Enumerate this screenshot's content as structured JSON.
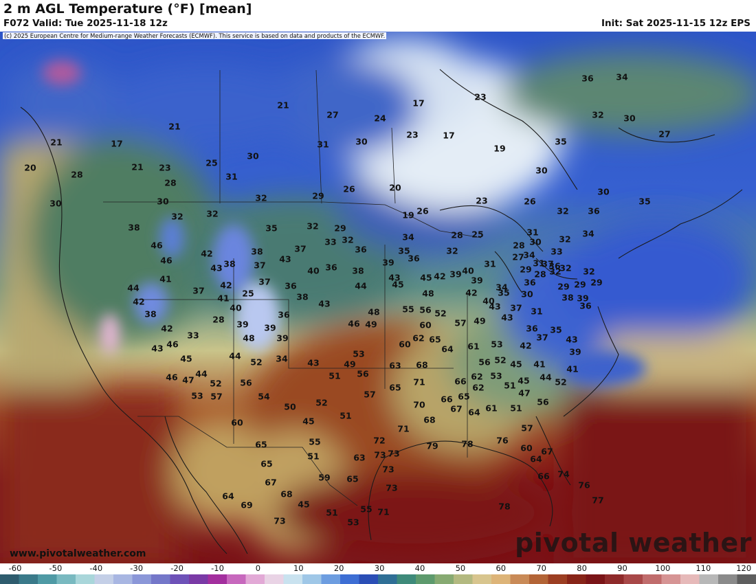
{
  "header": {
    "title": "2 m AGL Temperature (°F) [mean]",
    "valid": "F072 Valid: Tue 2025-11-18 12z",
    "init": "Init: Sat 2025-11-15 12z EPS"
  },
  "map": {
    "copyright": "(c) 2025 European Centre for Medium-range Weather Forecasts (ECMWF). This service is based on data and products of the ECMWF.",
    "website": "www.pivotalweather.com",
    "brand": "pivotal weather",
    "labels": [
      {
        "v": "21",
        "lon": -138.8,
        "lat": 61.3
      },
      {
        "v": "20",
        "lon": -142.6,
        "lat": 57.6
      },
      {
        "v": "17",
        "lon": -130.0,
        "lat": 61.1
      },
      {
        "v": "21",
        "lon": -121.6,
        "lat": 63.6
      },
      {
        "v": "21",
        "lon": -105.8,
        "lat": 66.7
      },
      {
        "v": "27",
        "lon": -98.6,
        "lat": 65.3
      },
      {
        "v": "24",
        "lon": -91.7,
        "lat": 64.8
      },
      {
        "v": "17",
        "lon": -86.1,
        "lat": 67.0
      },
      {
        "v": "23",
        "lon": -77.1,
        "lat": 67.9
      },
      {
        "v": "36",
        "lon": -61.5,
        "lat": 70.6
      },
      {
        "v": "34",
        "lon": -56.5,
        "lat": 70.8
      },
      {
        "v": "32",
        "lon": -60.0,
        "lat": 65.3
      },
      {
        "v": "30",
        "lon": -55.4,
        "lat": 64.8
      },
      {
        "v": "27",
        "lon": -50.3,
        "lat": 62.5
      },
      {
        "v": "28",
        "lon": -135.8,
        "lat": 56.6
      },
      {
        "v": "21",
        "lon": -127.0,
        "lat": 57.7
      },
      {
        "v": "23",
        "lon": -123.0,
        "lat": 57.6
      },
      {
        "v": "25",
        "lon": -116.2,
        "lat": 58.3
      },
      {
        "v": "30",
        "lon": -110.2,
        "lat": 59.3
      },
      {
        "v": "31",
        "lon": -100.0,
        "lat": 61.0
      },
      {
        "v": "30",
        "lon": -94.4,
        "lat": 61.4
      },
      {
        "v": "23",
        "lon": -87.0,
        "lat": 62.4
      },
      {
        "v": "17",
        "lon": -81.7,
        "lat": 62.3
      },
      {
        "v": "19",
        "lon": -74.3,
        "lat": 60.4
      },
      {
        "v": "35",
        "lon": -65.4,
        "lat": 61.4
      },
      {
        "v": "30",
        "lon": -138.9,
        "lat": 52.4
      },
      {
        "v": "28",
        "lon": -122.2,
        "lat": 55.4
      },
      {
        "v": "31",
        "lon": -113.3,
        "lat": 56.3
      },
      {
        "v": "30",
        "lon": -123.3,
        "lat": 52.7
      },
      {
        "v": "32",
        "lon": -109.0,
        "lat": 53.2
      },
      {
        "v": "30",
        "lon": -68.2,
        "lat": 57.2
      },
      {
        "v": "38",
        "lon": -127.5,
        "lat": 48.9
      },
      {
        "v": "32",
        "lon": -121.2,
        "lat": 50.5
      },
      {
        "v": "32",
        "lon": -116.1,
        "lat": 50.9
      },
      {
        "v": "29",
        "lon": -100.7,
        "lat": 53.5
      },
      {
        "v": "26",
        "lon": -96.2,
        "lat": 54.5
      },
      {
        "v": "20",
        "lon": -89.5,
        "lat": 54.7
      },
      {
        "v": "30",
        "lon": -59.2,
        "lat": 54.1
      },
      {
        "v": "35",
        "lon": -53.2,
        "lat": 52.7
      },
      {
        "v": "46",
        "lon": -124.2,
        "lat": 46.3
      },
      {
        "v": "46",
        "lon": -122.8,
        "lat": 44.1
      },
      {
        "v": "42",
        "lon": -116.9,
        "lat": 45.1
      },
      {
        "v": "35",
        "lon": -107.5,
        "lat": 48.8
      },
      {
        "v": "32",
        "lon": -101.5,
        "lat": 49.1
      },
      {
        "v": "29",
        "lon": -97.5,
        "lat": 48.8
      },
      {
        "v": "19",
        "lon": -87.6,
        "lat": 50.7
      },
      {
        "v": "26",
        "lon": -85.5,
        "lat": 51.3
      },
      {
        "v": "23",
        "lon": -76.9,
        "lat": 52.8
      },
      {
        "v": "26",
        "lon": -69.9,
        "lat": 52.7
      },
      {
        "v": "32",
        "lon": -65.1,
        "lat": 51.3
      },
      {
        "v": "36",
        "lon": -60.6,
        "lat": 51.3
      },
      {
        "v": "41",
        "lon": -122.9,
        "lat": 41.4
      },
      {
        "v": "43",
        "lon": -115.5,
        "lat": 43.0
      },
      {
        "v": "38",
        "lon": -113.6,
        "lat": 43.6
      },
      {
        "v": "38",
        "lon": -109.6,
        "lat": 45.4
      },
      {
        "v": "37",
        "lon": -103.3,
        "lat": 45.8
      },
      {
        "v": "33",
        "lon": -98.9,
        "lat": 46.8
      },
      {
        "v": "32",
        "lon": -96.4,
        "lat": 47.1
      },
      {
        "v": "34",
        "lon": -87.6,
        "lat": 47.5
      },
      {
        "v": "28",
        "lon": -80.5,
        "lat": 47.8
      },
      {
        "v": "25",
        "lon": -77.5,
        "lat": 47.9
      },
      {
        "v": "31",
        "lon": -69.5,
        "lat": 48.2
      },
      {
        "v": "44",
        "lon": -127.6,
        "lat": 40.1
      },
      {
        "v": "37",
        "lon": -109.2,
        "lat": 43.4
      },
      {
        "v": "43",
        "lon": -105.5,
        "lat": 44.3
      },
      {
        "v": "36",
        "lon": -94.5,
        "lat": 45.7
      },
      {
        "v": "35",
        "lon": -88.2,
        "lat": 45.5
      },
      {
        "v": "28",
        "lon": -71.5,
        "lat": 46.3
      },
      {
        "v": "30",
        "lon": -69.1,
        "lat": 46.8
      },
      {
        "v": "32",
        "lon": -64.8,
        "lat": 47.2
      },
      {
        "v": "34",
        "lon": -61.4,
        "lat": 48.0
      },
      {
        "v": "42",
        "lon": -126.8,
        "lat": 38.1
      },
      {
        "v": "37",
        "lon": -118.1,
        "lat": 39.7
      },
      {
        "v": "42",
        "lon": -114.1,
        "lat": 40.5
      },
      {
        "v": "37",
        "lon": -108.5,
        "lat": 41.0
      },
      {
        "v": "40",
        "lon": -101.4,
        "lat": 42.6
      },
      {
        "v": "36",
        "lon": -98.8,
        "lat": 43.1
      },
      {
        "v": "38",
        "lon": -94.9,
        "lat": 42.6
      },
      {
        "v": "39",
        "lon": -90.5,
        "lat": 43.8
      },
      {
        "v": "36",
        "lon": -86.8,
        "lat": 44.4
      },
      {
        "v": "32",
        "lon": -81.2,
        "lat": 45.5
      },
      {
        "v": "34",
        "lon": -70.0,
        "lat": 44.9
      },
      {
        "v": "33",
        "lon": -66.0,
        "lat": 45.4
      },
      {
        "v": "38",
        "lon": -125.1,
        "lat": 36.3
      },
      {
        "v": "25",
        "lon": -110.9,
        "lat": 39.3
      },
      {
        "v": "36",
        "lon": -104.7,
        "lat": 40.4
      },
      {
        "v": "41",
        "lon": -114.5,
        "lat": 38.6
      },
      {
        "v": "40",
        "lon": -78.9,
        "lat": 42.6
      },
      {
        "v": "31",
        "lon": -75.7,
        "lat": 43.6
      },
      {
        "v": "27",
        "lon": -71.6,
        "lat": 44.6
      },
      {
        "v": "29",
        "lon": -70.5,
        "lat": 42.8
      },
      {
        "v": "31",
        "lon": -68.6,
        "lat": 43.7
      },
      {
        "v": "37",
        "lon": -67.3,
        "lat": 43.6
      },
      {
        "v": "36",
        "lon": -66.3,
        "lat": 43.3
      },
      {
        "v": "32",
        "lon": -66.2,
        "lat": 42.5
      },
      {
        "v": "32",
        "lon": -64.7,
        "lat": 43.0
      },
      {
        "v": "42",
        "lon": -122.7,
        "lat": 34.2
      },
      {
        "v": "40",
        "lon": -112.7,
        "lat": 37.2
      },
      {
        "v": "38",
        "lon": -103.0,
        "lat": 38.8
      },
      {
        "v": "44",
        "lon": -94.5,
        "lat": 40.4
      },
      {
        "v": "43",
        "lon": -89.6,
        "lat": 41.6
      },
      {
        "v": "45",
        "lon": -89.1,
        "lat": 40.6
      },
      {
        "v": "45",
        "lon": -85.0,
        "lat": 41.6
      },
      {
        "v": "42",
        "lon": -83.0,
        "lat": 41.8
      },
      {
        "v": "39",
        "lon": -80.7,
        "lat": 42.1
      },
      {
        "v": "39",
        "lon": -77.6,
        "lat": 41.2
      },
      {
        "v": "34",
        "lon": -74.0,
        "lat": 40.2
      },
      {
        "v": "36",
        "lon": -69.9,
        "lat": 40.9
      },
      {
        "v": "28",
        "lon": -68.4,
        "lat": 42.1
      },
      {
        "v": "29",
        "lon": -65.0,
        "lat": 40.3
      },
      {
        "v": "29",
        "lon": -60.2,
        "lat": 40.9
      },
      {
        "v": "32",
        "lon": -61.3,
        "lat": 42.5
      },
      {
        "v": "33",
        "lon": -118.9,
        "lat": 33.2
      },
      {
        "v": "28",
        "lon": -115.2,
        "lat": 35.5
      },
      {
        "v": "39",
        "lon": -111.7,
        "lat": 34.8
      },
      {
        "v": "36",
        "lon": -105.7,
        "lat": 36.2
      },
      {
        "v": "43",
        "lon": -99.8,
        "lat": 37.8
      },
      {
        "v": "48",
        "lon": -84.7,
        "lat": 39.3
      },
      {
        "v": "42",
        "lon": -78.4,
        "lat": 39.4
      },
      {
        "v": "35",
        "lon": -73.7,
        "lat": 39.4
      },
      {
        "v": "30",
        "lon": -70.3,
        "lat": 39.2
      },
      {
        "v": "29",
        "lon": -62.6,
        "lat": 40.6
      },
      {
        "v": "46",
        "lon": -121.9,
        "lat": 31.9
      },
      {
        "v": "43",
        "lon": -124.1,
        "lat": 31.3
      },
      {
        "v": "39",
        "lon": -107.7,
        "lat": 34.3
      },
      {
        "v": "48",
        "lon": -92.6,
        "lat": 36.6
      },
      {
        "v": "55",
        "lon": -87.6,
        "lat": 37.0
      },
      {
        "v": "56",
        "lon": -85.1,
        "lat": 36.9
      },
      {
        "v": "52",
        "lon": -82.9,
        "lat": 36.4
      },
      {
        "v": "40",
        "lon": -75.9,
        "lat": 38.2
      },
      {
        "v": "43",
        "lon": -75.0,
        "lat": 37.4
      },
      {
        "v": "37",
        "lon": -71.9,
        "lat": 37.2
      },
      {
        "v": "31",
        "lon": -68.9,
        "lat": 36.7
      },
      {
        "v": "38",
        "lon": -64.4,
        "lat": 38.7
      },
      {
        "v": "39",
        "lon": -62.2,
        "lat": 38.6
      },
      {
        "v": "36",
        "lon": -61.8,
        "lat": 37.5
      },
      {
        "v": "45",
        "lon": -119.9,
        "lat": 29.8
      },
      {
        "v": "48",
        "lon": -110.8,
        "lat": 32.8
      },
      {
        "v": "39",
        "lon": -105.9,
        "lat": 32.8
      },
      {
        "v": "46",
        "lon": -95.5,
        "lat": 34.9
      },
      {
        "v": "49",
        "lon": -93.0,
        "lat": 34.8
      },
      {
        "v": "60",
        "lon": -85.1,
        "lat": 34.7
      },
      {
        "v": "57",
        "lon": -80.0,
        "lat": 35.0
      },
      {
        "v": "49",
        "lon": -77.2,
        "lat": 35.3
      },
      {
        "v": "43",
        "lon": -73.2,
        "lat": 35.8
      },
      {
        "v": "36",
        "lon": -69.6,
        "lat": 34.2
      },
      {
        "v": "35",
        "lon": -66.1,
        "lat": 34.0
      },
      {
        "v": "43",
        "lon": -63.8,
        "lat": 32.6
      },
      {
        "v": "44",
        "lon": -117.7,
        "lat": 27.6
      },
      {
        "v": "44",
        "lon": -112.8,
        "lat": 30.2
      },
      {
        "v": "52",
        "lon": -109.7,
        "lat": 29.3
      },
      {
        "v": "34",
        "lon": -106.0,
        "lat": 29.8
      },
      {
        "v": "43",
        "lon": -101.4,
        "lat": 29.2
      },
      {
        "v": "53",
        "lon": -94.8,
        "lat": 30.5
      },
      {
        "v": "60",
        "lon": -88.1,
        "lat": 31.9
      },
      {
        "v": "62",
        "lon": -86.1,
        "lat": 32.8
      },
      {
        "v": "65",
        "lon": -83.7,
        "lat": 32.6
      },
      {
        "v": "64",
        "lon": -81.9,
        "lat": 31.2
      },
      {
        "v": "61",
        "lon": -78.1,
        "lat": 31.6
      },
      {
        "v": "53",
        "lon": -74.7,
        "lat": 31.9
      },
      {
        "v": "42",
        "lon": -70.5,
        "lat": 31.7
      },
      {
        "v": "37",
        "lon": -68.1,
        "lat": 32.9
      },
      {
        "v": "39",
        "lon": -63.3,
        "lat": 30.8
      },
      {
        "v": "46",
        "lon": -122.0,
        "lat": 27.1
      },
      {
        "v": "47",
        "lon": -119.6,
        "lat": 26.7
      },
      {
        "v": "52",
        "lon": -115.6,
        "lat": 26.2
      },
      {
        "v": "56",
        "lon": -111.2,
        "lat": 26.3
      },
      {
        "v": "49",
        "lon": -96.1,
        "lat": 29.0
      },
      {
        "v": "51",
        "lon": -98.3,
        "lat": 27.3
      },
      {
        "v": "56",
        "lon": -94.2,
        "lat": 27.6
      },
      {
        "v": "63",
        "lon": -89.5,
        "lat": 28.8
      },
      {
        "v": "68",
        "lon": -85.6,
        "lat": 28.9
      },
      {
        "v": "56",
        "lon": -76.5,
        "lat": 29.3
      },
      {
        "v": "52",
        "lon": -74.2,
        "lat": 29.6
      },
      {
        "v": "45",
        "lon": -71.9,
        "lat": 29.0
      },
      {
        "v": "41",
        "lon": -68.5,
        "lat": 29.0
      },
      {
        "v": "41",
        "lon": -63.7,
        "lat": 28.3
      },
      {
        "v": "53",
        "lon": -118.3,
        "lat": 24.4
      },
      {
        "v": "57",
        "lon": -115.5,
        "lat": 24.3
      },
      {
        "v": "54",
        "lon": -108.6,
        "lat": 24.3
      },
      {
        "v": "50",
        "lon": -104.8,
        "lat": 22.8
      },
      {
        "v": "52",
        "lon": -100.2,
        "lat": 23.4
      },
      {
        "v": "57",
        "lon": -93.2,
        "lat": 24.6
      },
      {
        "v": "65",
        "lon": -89.5,
        "lat": 25.6
      },
      {
        "v": "71",
        "lon": -86.0,
        "lat": 26.4
      },
      {
        "v": "66",
        "lon": -80.0,
        "lat": 26.5
      },
      {
        "v": "62",
        "lon": -77.6,
        "lat": 27.2
      },
      {
        "v": "53",
        "lon": -74.8,
        "lat": 27.3
      },
      {
        "v": "62",
        "lon": -77.4,
        "lat": 25.6
      },
      {
        "v": "51",
        "lon": -72.8,
        "lat": 25.9
      },
      {
        "v": "45",
        "lon": -70.8,
        "lat": 26.6
      },
      {
        "v": "47",
        "lon": -70.7,
        "lat": 24.8
      },
      {
        "v": "44",
        "lon": -67.6,
        "lat": 27.1
      },
      {
        "v": "52",
        "lon": -65.4,
        "lat": 26.4
      },
      {
        "v": "60",
        "lon": -112.5,
        "lat": 20.5
      },
      {
        "v": "45",
        "lon": -102.1,
        "lat": 20.7
      },
      {
        "v": "51",
        "lon": -96.7,
        "lat": 21.5
      },
      {
        "v": "70",
        "lon": -86.0,
        "lat": 23.1
      },
      {
        "v": "66",
        "lon": -82.0,
        "lat": 23.9
      },
      {
        "v": "65",
        "lon": -79.5,
        "lat": 24.3
      },
      {
        "v": "67",
        "lon": -80.6,
        "lat": 22.5
      },
      {
        "v": "64",
        "lon": -78.0,
        "lat": 22.0
      },
      {
        "v": "61",
        "lon": -75.5,
        "lat": 22.6
      },
      {
        "v": "51",
        "lon": -71.9,
        "lat": 22.6
      },
      {
        "v": "56",
        "lon": -68.0,
        "lat": 23.5
      },
      {
        "v": "65",
        "lon": -109.0,
        "lat": 17.3
      },
      {
        "v": "55",
        "lon": -101.2,
        "lat": 17.7
      },
      {
        "v": "72",
        "lon": -91.8,
        "lat": 17.9
      },
      {
        "v": "71",
        "lon": -88.3,
        "lat": 19.6
      },
      {
        "v": "68",
        "lon": -84.5,
        "lat": 20.9
      },
      {
        "v": "57",
        "lon": -70.3,
        "lat": 19.7
      },
      {
        "v": "65",
        "lon": -108.2,
        "lat": 14.5
      },
      {
        "v": "51",
        "lon": -101.4,
        "lat": 15.6
      },
      {
        "v": "63",
        "lon": -94.7,
        "lat": 15.4
      },
      {
        "v": "73",
        "lon": -91.7,
        "lat": 15.8
      },
      {
        "v": "73",
        "lon": -89.7,
        "lat": 16.0
      },
      {
        "v": "79",
        "lon": -84.1,
        "lat": 17.1
      },
      {
        "v": "78",
        "lon": -79.0,
        "lat": 17.4
      },
      {
        "v": "76",
        "lon": -73.9,
        "lat": 17.9
      },
      {
        "v": "60",
        "lon": -70.4,
        "lat": 16.8
      },
      {
        "v": "67",
        "lon": -67.4,
        "lat": 16.3
      },
      {
        "v": "64",
        "lon": -69.0,
        "lat": 15.2
      },
      {
        "v": "73",
        "lon": -90.5,
        "lat": 13.7
      },
      {
        "v": "74",
        "lon": -65.0,
        "lat": 13.0
      },
      {
        "v": "67",
        "lon": -107.6,
        "lat": 11.8
      },
      {
        "v": "68",
        "lon": -105.3,
        "lat": 10.1
      },
      {
        "v": "59",
        "lon": -99.8,
        "lat": 12.5
      },
      {
        "v": "65",
        "lon": -95.7,
        "lat": 12.3
      },
      {
        "v": "66",
        "lon": -67.9,
        "lat": 12.7
      },
      {
        "v": "64",
        "lon": -113.8,
        "lat": 9.8
      },
      {
        "v": "69",
        "lon": -111.1,
        "lat": 8.5
      },
      {
        "v": "45",
        "lon": -102.8,
        "lat": 8.6
      },
      {
        "v": "73",
        "lon": -90.0,
        "lat": 11.0
      },
      {
        "v": "76",
        "lon": -62.0,
        "lat": 11.4
      },
      {
        "v": "77",
        "lon": -60.0,
        "lat": 9.2
      },
      {
        "v": "73",
        "lon": -106.3,
        "lat": 6.2
      },
      {
        "v": "51",
        "lon": -98.7,
        "lat": 7.4
      },
      {
        "v": "55",
        "lon": -93.7,
        "lat": 7.9
      },
      {
        "v": "71",
        "lon": -91.2,
        "lat": 7.5
      },
      {
        "v": "78",
        "lon": -73.6,
        "lat": 8.3
      },
      {
        "v": "53",
        "lon": -95.6,
        "lat": 6.0
      }
    ]
  },
  "colorbar": {
    "ticks": [
      "-60",
      "-50",
      "-40",
      "-30",
      "-20",
      "-10",
      "0",
      "10",
      "20",
      "30",
      "40",
      "50",
      "60",
      "70",
      "80",
      "90",
      "100",
      "110",
      "120"
    ]
  }
}
